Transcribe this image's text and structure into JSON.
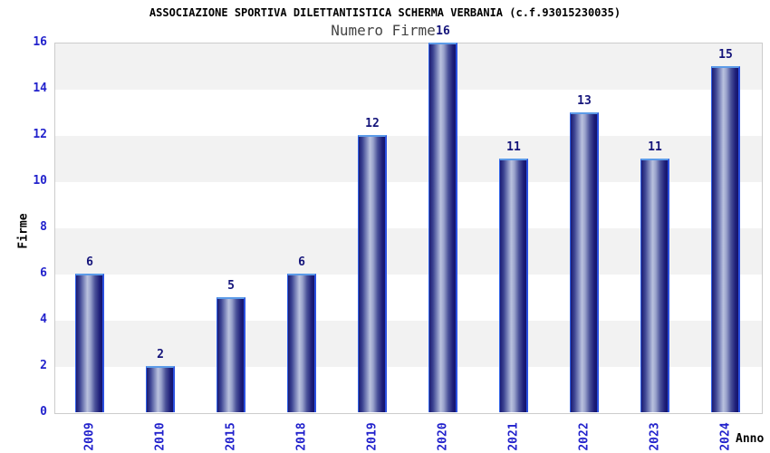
{
  "chart_data": {
    "type": "bar",
    "title": "ASSOCIAZIONE SPORTIVA DILETTANTISTICA SCHERMA VERBANIA (c.f.93015230035)",
    "subtitle": "Numero Firme",
    "xlabel": "Anno",
    "ylabel": "Firme",
    "categories": [
      "2009",
      "2010",
      "2015",
      "2018",
      "2019",
      "2020",
      "2021",
      "2022",
      "2023",
      "2024"
    ],
    "values": [
      6,
      2,
      5,
      6,
      12,
      16,
      11,
      13,
      11,
      15
    ],
    "ylim": [
      0,
      16
    ],
    "ytick_step": 2,
    "yticks": [
      0,
      2,
      4,
      6,
      8,
      10,
      12,
      14,
      16
    ],
    "grid": "horizontal-alternating-bands",
    "legend": "none",
    "colors": {
      "background": "#ffffff",
      "title": "#000000",
      "subtitle": "#444444",
      "tick_label": "#2222cc",
      "data_label": "#14147a",
      "axis_title": "#000000",
      "band_light": "#f2f2f2",
      "band_white": "#ffffff",
      "plot_border": "#cccccc",
      "bar_edge_top": "#5c9be8",
      "bar_edge_left": "#3163e8",
      "bar_edge_right": "#2b50e0",
      "bar_gradient": [
        {
          "c": "#1b1b74",
          "p": 0
        },
        {
          "c": "#3c4392",
          "p": 14
        },
        {
          "c": "#8089bd",
          "p": 30
        },
        {
          "c": "#bac2de",
          "p": 43
        },
        {
          "c": "#99a2cb",
          "p": 55
        },
        {
          "c": "#4a5199",
          "p": 72
        },
        {
          "c": "#1d1d78",
          "p": 90
        },
        {
          "c": "#15156b",
          "p": 100
        }
      ]
    }
  }
}
